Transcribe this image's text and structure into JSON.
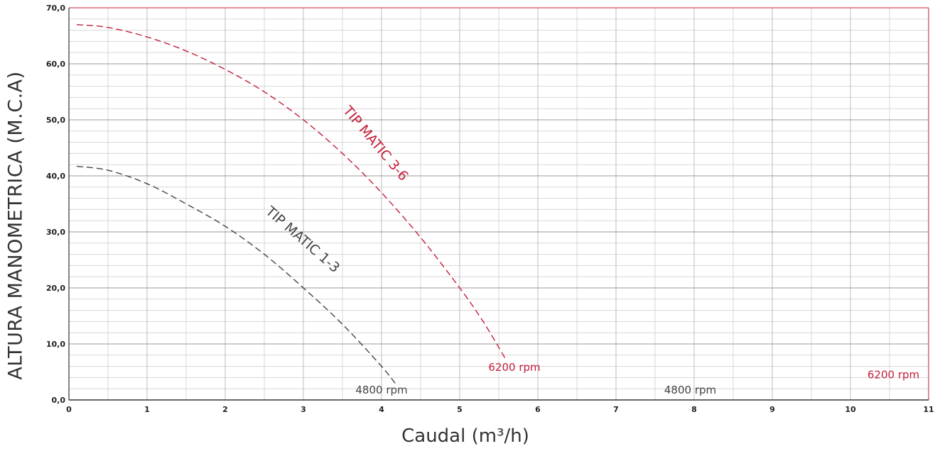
{
  "chart_data": {
    "type": "line",
    "title": "",
    "xlabel": "Caudal (m³/h)",
    "ylabel": "ALTURA MANOMETRICA (M.C.A)",
    "xlim": [
      0,
      11
    ],
    "ylim": [
      0,
      70
    ],
    "x_ticks": [
      "0",
      "1",
      "2",
      "3",
      "4",
      "5",
      "6",
      "7",
      "8",
      "9",
      "10",
      "11"
    ],
    "y_ticks": [
      "0,0",
      "10,0",
      "20,0",
      "30,0",
      "40,0",
      "50,0",
      "60,0",
      "70,0"
    ],
    "grid": true,
    "series": [
      {
        "name": "TIP MATIC 3-6",
        "color": "#c41e3a",
        "style": "dashed",
        "x": [
          0.1,
          0.5,
          1,
          1.5,
          2,
          2.5,
          3,
          3.5,
          4,
          4.5,
          5,
          5.3,
          5.6
        ],
        "y": [
          67,
          66.5,
          64.8,
          62.3,
          59,
          55,
          50,
          44,
          37,
          29,
          20,
          14,
          7
        ]
      },
      {
        "name": "TIP MATIC 1-3",
        "color": "#444444",
        "style": "dashed",
        "x": [
          0.1,
          0.5,
          1,
          1.5,
          2,
          2.5,
          3,
          3.5,
          4,
          4.2
        ],
        "y": [
          41.7,
          41,
          38.6,
          35,
          31,
          26,
          20,
          13.5,
          6,
          2.5
        ]
      }
    ],
    "annotations": [
      {
        "text": "6200 rpm",
        "x": 5.7,
        "y": 5.8,
        "color": "#c41e3a"
      },
      {
        "text": "4800 rpm",
        "x": 4.0,
        "y": 1.8,
        "color": "#444444"
      },
      {
        "text": "4800 rpm",
        "x": 7.95,
        "y": 1.8,
        "color": "#444444"
      },
      {
        "text": "6200 rpm",
        "x": 10.55,
        "y": 4.5,
        "color": "#c41e3a"
      }
    ]
  }
}
